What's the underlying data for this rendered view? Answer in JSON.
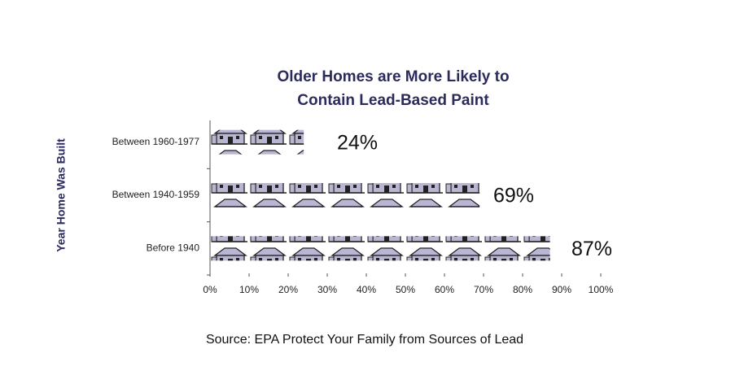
{
  "chart_data": {
    "type": "pictograph-bar",
    "title": "Older Homes are More Likely to Contain Lead-Based Paint",
    "y_label": "Year Home Was Built",
    "categories": [
      "Between 1960-1977",
      "Between 1940-1959",
      "Before 1940"
    ],
    "values": [
      24,
      69,
      87
    ],
    "value_labels": [
      "24%",
      "69%",
      "87%"
    ],
    "color": "#b9b6d3",
    "xlim": [
      0,
      100
    ],
    "xticks": [
      {
        "value": 0,
        "label": "0%"
      },
      {
        "value": 10,
        "label": "10%"
      },
      {
        "value": 20,
        "label": "20%"
      },
      {
        "value": 30,
        "label": "30%"
      },
      {
        "value": 40,
        "label": "40%"
      },
      {
        "value": 50,
        "label": "50%"
      },
      {
        "value": 60,
        "label": "60%"
      },
      {
        "value": 70,
        "label": "70%"
      },
      {
        "value": 80,
        "label": "80%"
      },
      {
        "value": 90,
        "label": "90%"
      },
      {
        "value": 100,
        "label": "100%"
      }
    ],
    "source": "Source: EPA Protect Your Family from Sources of Lead"
  }
}
